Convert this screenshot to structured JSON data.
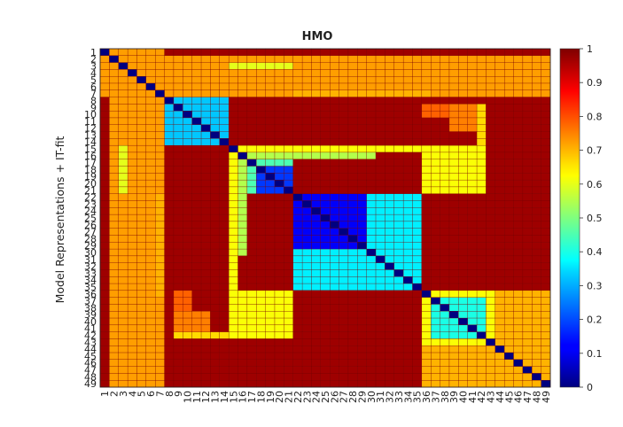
{
  "chart_data": {
    "type": "heatmap",
    "title": "HMO",
    "ylabel": "Model Representations + IT-fit",
    "xlabel": "",
    "colormap": "jet",
    "vmin": 0,
    "vmax": 1,
    "colorbar_ticks": [
      "0",
      "0.1",
      "0.2",
      "0.3",
      "0.4",
      "0.5",
      "0.6",
      "0.7",
      "0.8",
      "0.9",
      "1"
    ],
    "x_tick_labels": [
      "1",
      "2",
      "3",
      "4",
      "5",
      "6",
      "7",
      "8",
      "9",
      "10",
      "11",
      "12",
      "13",
      "14",
      "15",
      "16",
      "17",
      "18",
      "19",
      "20",
      "21",
      "22",
      "23",
      "24",
      "25",
      "26",
      "27",
      "28",
      "29",
      "30",
      "31",
      "32",
      "33",
      "34",
      "35",
      "36",
      "37",
      "38",
      "39",
      "40",
      "41",
      "42",
      "43",
      "44",
      "45",
      "46",
      "47",
      "48",
      "49"
    ],
    "y_tick_labels": [
      "1",
      "2",
      "3",
      "4",
      "5",
      "6",
      "7",
      "8",
      "9",
      "10",
      "11",
      "12",
      "13",
      "14",
      "15",
      "16",
      "17",
      "18",
      "19",
      "20",
      "21",
      "22",
      "23",
      "24",
      "25",
      "26",
      "27",
      "28",
      "29",
      "30",
      "31",
      "32",
      "33",
      "34",
      "35",
      "36",
      "37",
      "38",
      "39",
      "40",
      "41",
      "42",
      "43",
      "44",
      "45",
      "46",
      "47",
      "48",
      "49"
    ],
    "matrix_size": 49,
    "default_value": 0.97,
    "diagonal_value": 0.0,
    "blocks": [
      {
        "rows": [
          8,
          14
        ],
        "cols": [
          8,
          14
        ],
        "value": 0.32,
        "note": "blue/cyan block"
      },
      {
        "rows": [
          15,
          21
        ],
        "cols": [
          15,
          21
        ],
        "value": 0.45
      },
      {
        "rows": [
          18,
          21
        ],
        "cols": [
          18,
          21
        ],
        "value": 0.18
      },
      {
        "rows": [
          22,
          35
        ],
        "cols": [
          22,
          35
        ],
        "value": 0.36
      },
      {
        "rows": [
          22,
          29
        ],
        "cols": [
          22,
          29
        ],
        "value": 0.12
      },
      {
        "rows": [
          30,
          35
        ],
        "cols": [
          30,
          35
        ],
        "value": 0.36
      },
      {
        "rows": [
          36,
          49
        ],
        "cols": [
          36,
          49
        ],
        "value": 0.62
      },
      {
        "rows": [
          37,
          42
        ],
        "cols": [
          37,
          42
        ],
        "value": 0.4
      },
      {
        "rows": [
          1,
          7
        ],
        "cols": [
          1,
          7
        ],
        "value": 0.6
      }
    ],
    "off_diagonal_bands": [
      {
        "rows": [
          1,
          49
        ],
        "cols": [
          2,
          7
        ],
        "value": 0.72,
        "note": "warm columns 2-7"
      },
      {
        "rows": [
          15,
          15
        ],
        "cols": [
          15,
          36
        ],
        "value": 0.62,
        "note": "row 15 yellow band"
      },
      {
        "rows": [
          7,
          7
        ],
        "cols": [
          22,
          36
        ],
        "value": 0.7
      },
      {
        "rows": [
          3,
          3
        ],
        "cols": [
          15,
          21
        ],
        "value": 0.6
      },
      {
        "rows": [
          36,
          42
        ],
        "cols": [
          17,
          21
        ],
        "value": 0.62
      },
      {
        "rows": [
          9,
          10
        ],
        "cols": [
          36,
          42
        ],
        "value": 0.78
      },
      {
        "rows": [
          15,
          21
        ],
        "cols": [
          36,
          42
        ],
        "value": 0.62
      },
      {
        "rows": [
          39,
          41
        ],
        "cols": [
          9,
          12
        ],
        "value": 0.75
      },
      {
        "rows": [
          42,
          42
        ],
        "cols": [
          9,
          14
        ],
        "value": 0.66
      },
      {
        "rows": [
          16,
          30
        ],
        "cols": [
          16,
          16
        ],
        "value": 0.55
      },
      {
        "rows": [
          36,
          49
        ],
        "cols": [
          44,
          49
        ],
        "value": 0.7
      }
    ]
  }
}
